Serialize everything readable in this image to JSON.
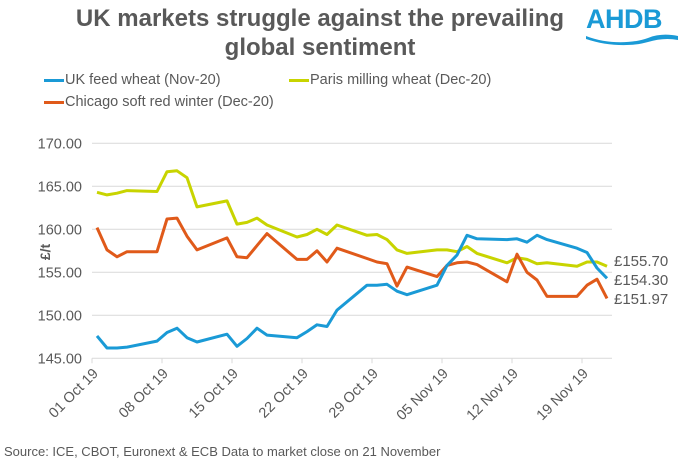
{
  "header": {
    "title_line1": "UK markets struggle against the prevailing",
    "title_line2": "global sentiment",
    "logo_text": "AHDB",
    "logo_color": "#1a9ad6"
  },
  "footer": {
    "source": "Source: ICE, CBOT, Euronext & ECB  Data to market close on 21 November"
  },
  "chart_data": {
    "type": "line",
    "title": "UK markets struggle against the prevailing global sentiment",
    "xlabel": "",
    "ylabel": "£/t",
    "ylim": [
      145,
      170
    ],
    "yticks": [
      "145.00",
      "150.00",
      "155.00",
      "160.00",
      "165.00",
      "170.00"
    ],
    "ytick_values": [
      145,
      150,
      155,
      160,
      165,
      170
    ],
    "grid": true,
    "legend_position": "top",
    "xtick_labels": [
      "01 Oct 19",
      "08 Oct 19",
      "15 Oct 19",
      "22 Oct 19",
      "29 Oct 19",
      "05 Nov 19",
      "12 Nov 19",
      "19 Nov 19"
    ],
    "xtick_day_offsets": [
      0,
      7,
      14,
      21,
      28,
      35,
      42,
      49
    ],
    "x": [
      "01 Oct 19",
      "02 Oct 19",
      "03 Oct 19",
      "04 Oct 19",
      "07 Oct 19",
      "08 Oct 19",
      "09 Oct 19",
      "10 Oct 19",
      "11 Oct 19",
      "14 Oct 19",
      "15 Oct 19",
      "16 Oct 19",
      "17 Oct 19",
      "18 Oct 19",
      "21 Oct 19",
      "22 Oct 19",
      "23 Oct 19",
      "24 Oct 19",
      "25 Oct 19",
      "28 Oct 19",
      "29 Oct 19",
      "30 Oct 19",
      "31 Oct 19",
      "01 Nov 19",
      "04 Nov 19",
      "05 Nov 19",
      "06 Nov 19",
      "07 Nov 19",
      "08 Nov 19",
      "11 Nov 19",
      "12 Nov 19",
      "13 Nov 19",
      "14 Nov 19",
      "15 Nov 19",
      "18 Nov 19",
      "19 Nov 19",
      "20 Nov 19",
      "21 Nov 19"
    ],
    "x_day_offsets": [
      0,
      1,
      2,
      3,
      6,
      7,
      8,
      9,
      10,
      13,
      14,
      15,
      16,
      17,
      20,
      21,
      22,
      23,
      24,
      27,
      28,
      29,
      30,
      31,
      34,
      35,
      36,
      37,
      38,
      41,
      42,
      43,
      44,
      45,
      48,
      49,
      50,
      51
    ],
    "series": [
      {
        "name": "UK feed wheat (Nov-20)",
        "color": "#1a9ad6",
        "end_label": "£154.30",
        "values": [
          147.6,
          146.2,
          146.2,
          146.3,
          147.0,
          148.0,
          148.5,
          147.4,
          146.9,
          147.8,
          146.4,
          147.3,
          148.5,
          147.7,
          147.4,
          148.1,
          148.9,
          148.7,
          150.6,
          153.5,
          153.5,
          153.6,
          152.8,
          152.4,
          153.5,
          155.8,
          157.0,
          159.3,
          158.9,
          158.8,
          158.9,
          158.5,
          159.3,
          158.8,
          157.8,
          157.3,
          155.5,
          154.3
        ]
      },
      {
        "name": "Paris milling wheat (Dec-20)",
        "color": "#c8d400",
        "end_label": "£155.70",
        "values": [
          164.3,
          164.0,
          164.2,
          164.5,
          164.4,
          166.7,
          166.8,
          166.0,
          162.6,
          163.3,
          160.6,
          160.8,
          161.3,
          160.5,
          159.1,
          159.4,
          160.0,
          159.4,
          160.5,
          159.3,
          159.4,
          158.8,
          157.6,
          157.2,
          157.6,
          157.6,
          157.4,
          158.0,
          157.2,
          156.1,
          156.7,
          156.5,
          156.0,
          156.1,
          155.7,
          156.2,
          156.2,
          155.7
        ]
      },
      {
        "name": "Chicago soft red winter (Dec-20)",
        "color": "#e05a1a",
        "end_label": "£151.97",
        "values": [
          160.2,
          157.6,
          156.8,
          157.4,
          157.4,
          161.2,
          161.3,
          159.2,
          157.6,
          159.0,
          156.8,
          156.7,
          158.1,
          159.5,
          156.5,
          156.5,
          157.5,
          156.2,
          157.8,
          156.6,
          156.2,
          156.0,
          153.4,
          155.6,
          154.5,
          155.8,
          156.1,
          156.2,
          155.9,
          153.9,
          157.1,
          155.0,
          154.1,
          152.2,
          152.2,
          153.5,
          154.2,
          151.97
        ]
      }
    ]
  }
}
